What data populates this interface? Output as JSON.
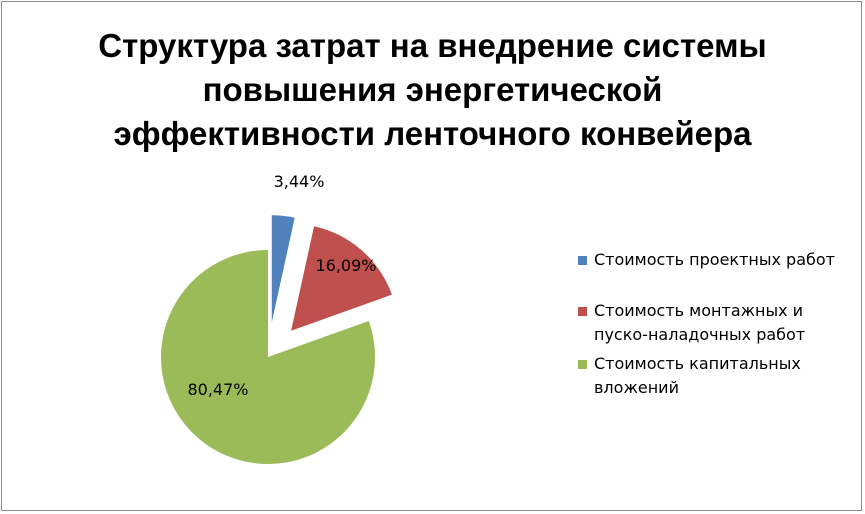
{
  "chart_data": {
    "type": "pie",
    "title": "Структура затрат на внедрение системы повышения энергетической эффективности ленточного конвейера",
    "title_lines": [
      "Структура затрат на внедрение системы",
      "повышения энергетической",
      "эффективности ленточного конвейера"
    ],
    "legend_position": "right",
    "slices": [
      {
        "label": "Стоимость проектных работ",
        "value": 3.44,
        "value_label": "3,44%",
        "color": "#4F81BD",
        "exploded": true
      },
      {
        "label": "Стоимость монтажных и пуско-наладочных работ",
        "value": 16.09,
        "value_label": "16,09%",
        "color": "#C0504D",
        "exploded": true
      },
      {
        "label": "Стоимость капитальных вложений",
        "value": 80.47,
        "value_label": "80,47%",
        "color": "#9BBB59",
        "exploded": false
      }
    ],
    "legend_lines": [
      [
        "Стоимость проектных работ"
      ],
      [
        "Стоимость монтажных и",
        "пуско-наладочных работ"
      ],
      [
        "Стоимость капитальных",
        "вложений"
      ]
    ]
  }
}
